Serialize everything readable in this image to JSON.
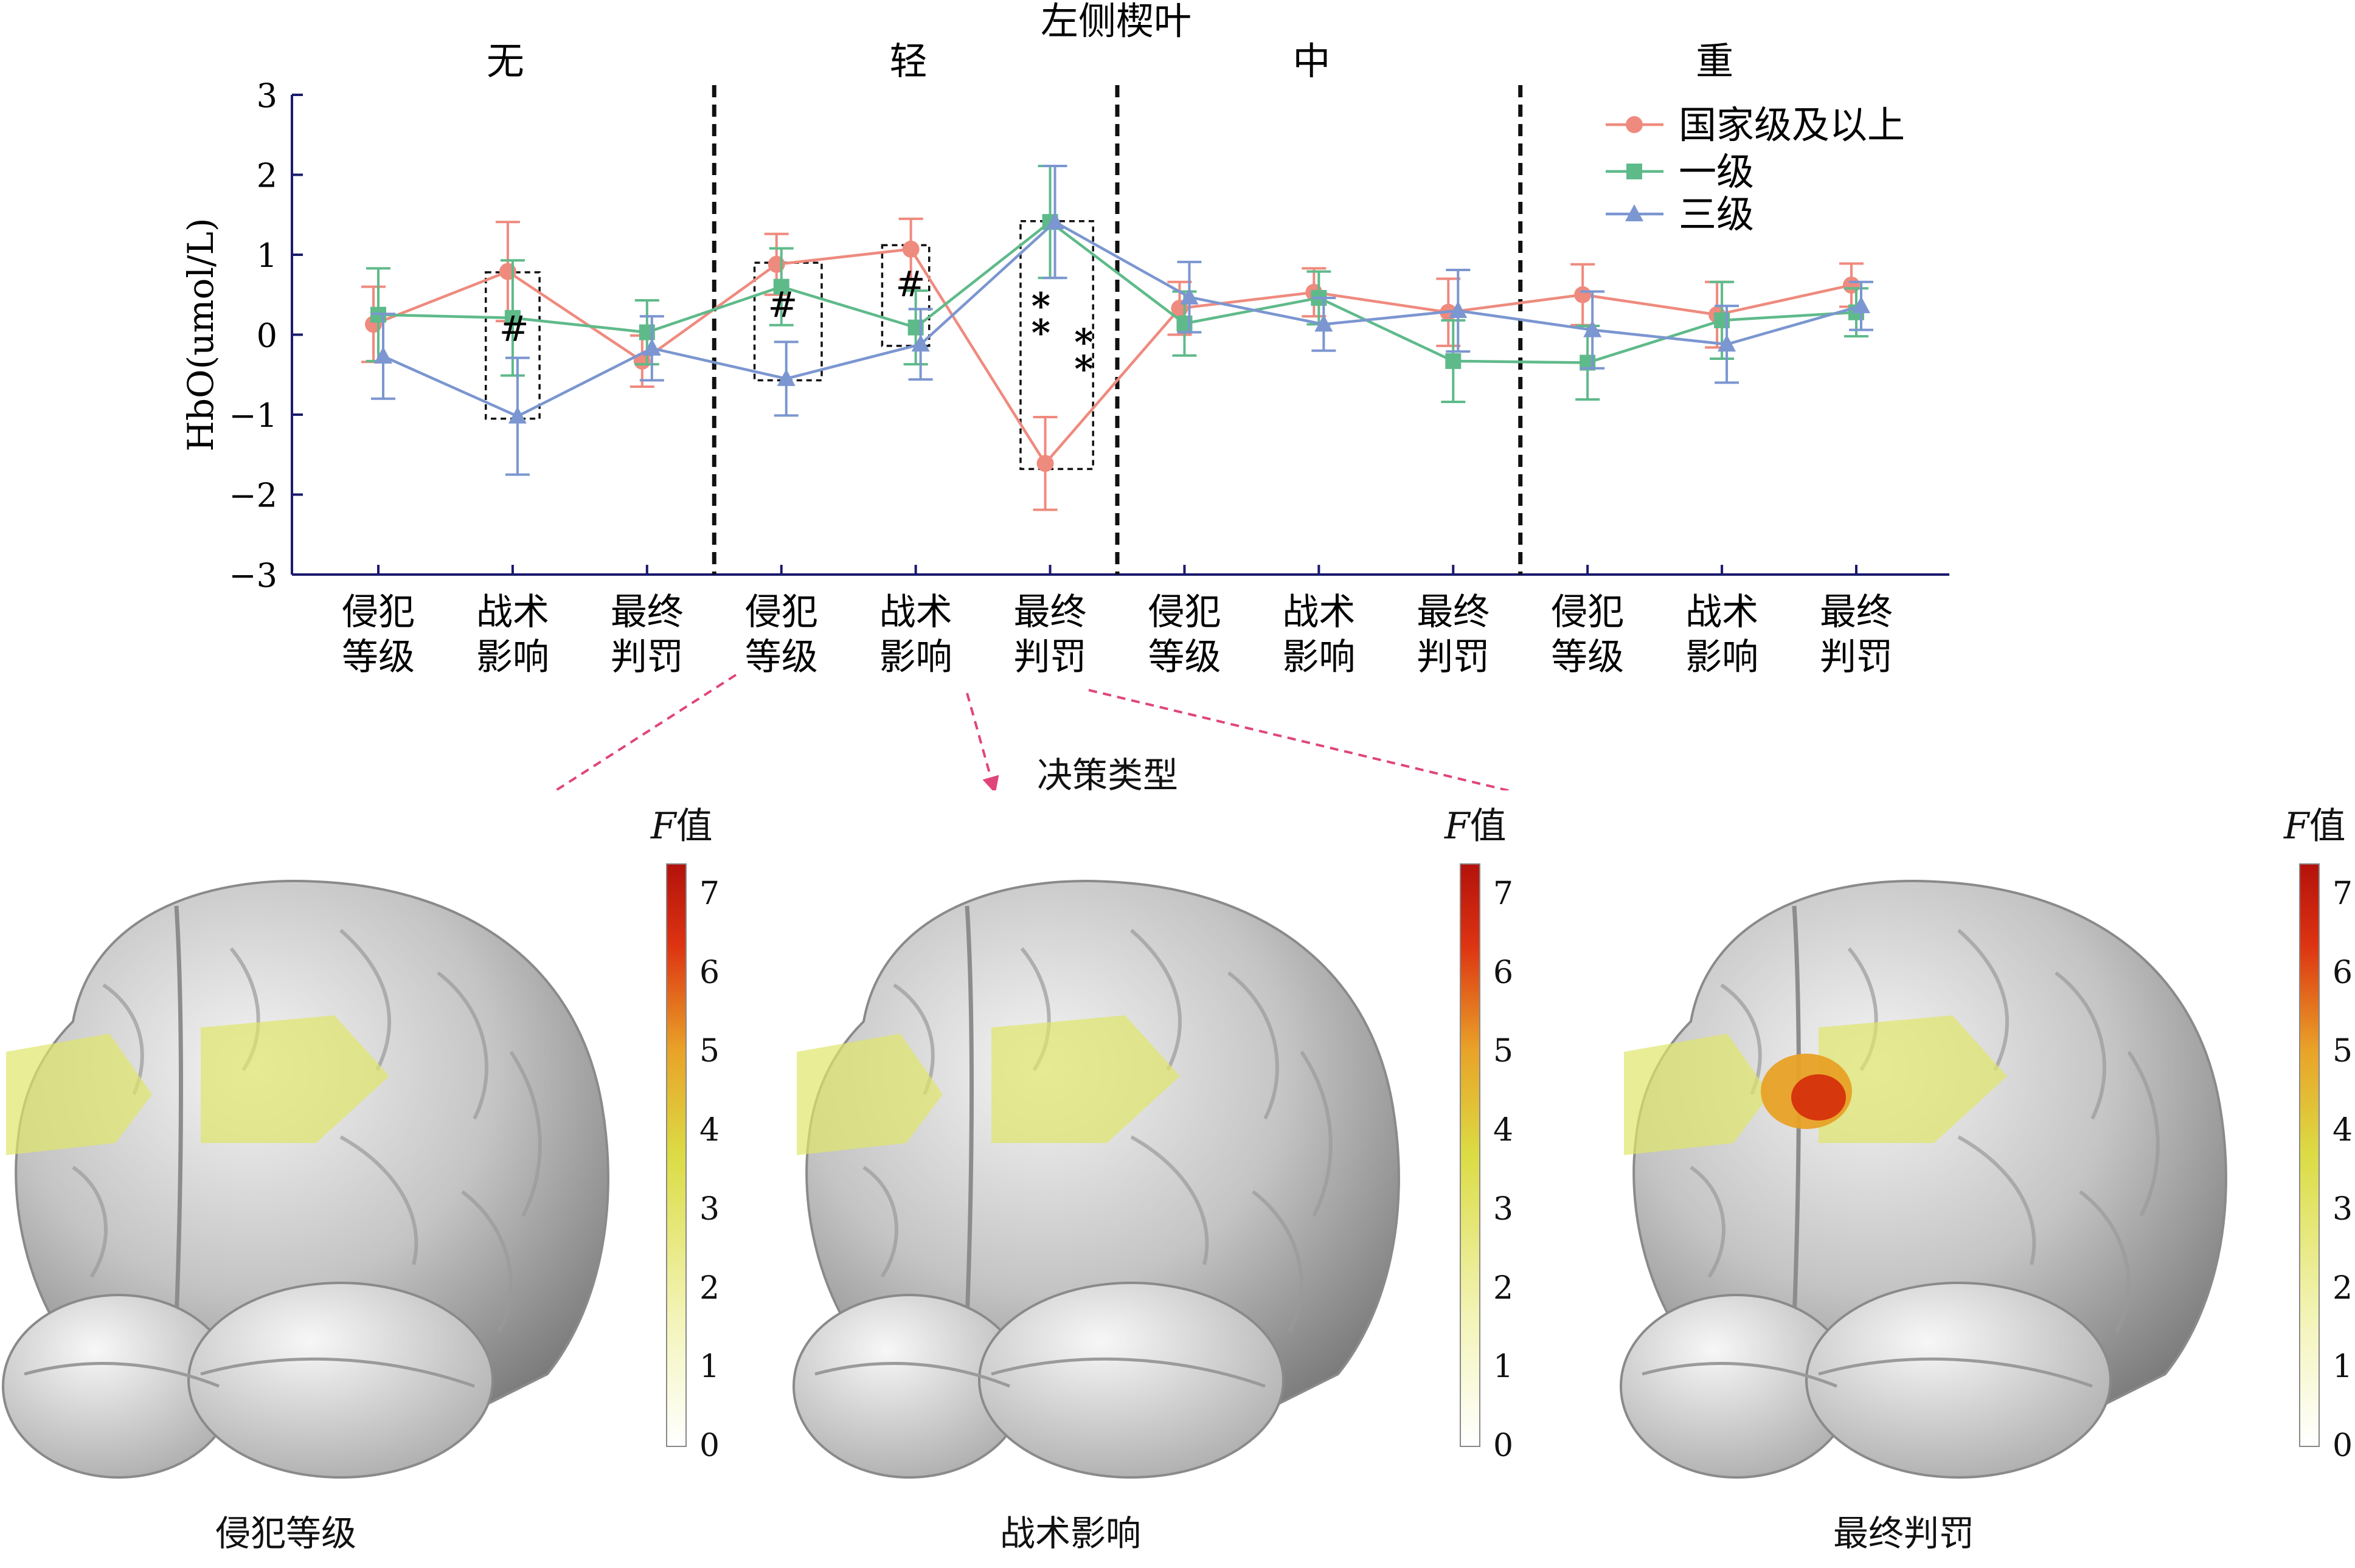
{
  "chart_data": {
    "type": "line",
    "title": "左侧楔叶",
    "ylabel": "HbO(umol/L)",
    "ylim": [
      -3,
      3
    ],
    "yticks": [
      3,
      2,
      1,
      0,
      -1,
      -2,
      -3
    ],
    "ytick_labels": [
      "3",
      "2",
      "1",
      "0",
      "−1",
      "−2",
      "−3"
    ],
    "groups": [
      "无",
      "轻",
      "中",
      "重"
    ],
    "categories": [
      [
        "侵犯",
        "等级"
      ],
      [
        "战术",
        "影响"
      ],
      [
        "最终",
        "判罚"
      ],
      [
        "侵犯",
        "等级"
      ],
      [
        "战术",
        "影响"
      ],
      [
        "最终",
        "判罚"
      ],
      [
        "侵犯",
        "等级"
      ],
      [
        "战术",
        "影响"
      ],
      [
        "最终",
        "判罚"
      ],
      [
        "侵犯",
        "等级"
      ],
      [
        "战术",
        "影响"
      ],
      [
        "最终",
        "判罚"
      ]
    ],
    "x_positions": [
      1,
      2,
      3,
      4,
      5,
      6,
      7,
      8,
      9,
      10,
      11,
      12
    ],
    "legend_position": "top-right",
    "series": [
      {
        "name": "国家级及以上",
        "color": "#ef8a7e",
        "marker": "circle",
        "values": [
          0.13,
          0.79,
          -0.33,
          0.88,
          1.07,
          -1.61,
          0.33,
          0.53,
          0.28,
          0.5,
          0.25,
          0.62
        ],
        "errors": [
          0.47,
          0.62,
          0.32,
          0.38,
          0.38,
          0.58,
          0.33,
          0.3,
          0.42,
          0.38,
          0.41,
          0.27
        ]
      },
      {
        "name": "一级",
        "color": "#5fba8a",
        "marker": "square",
        "values": [
          0.25,
          0.21,
          0.03,
          0.6,
          0.09,
          1.41,
          0.14,
          0.46,
          -0.33,
          -0.35,
          0.18,
          0.28
        ],
        "errors": [
          0.58,
          0.72,
          0.4,
          0.48,
          0.46,
          0.7,
          0.4,
          0.33,
          0.51,
          0.46,
          0.48,
          0.3
        ]
      },
      {
        "name": "三级",
        "color": "#7b96d0",
        "marker": "triangle",
        "values": [
          -0.27,
          -1.02,
          -0.17,
          -0.55,
          -0.12,
          1.41,
          0.47,
          0.13,
          0.3,
          0.06,
          -0.12,
          0.36
        ],
        "errors": [
          0.53,
          0.73,
          0.4,
          0.46,
          0.44,
          0.7,
          0.44,
          0.33,
          0.51,
          0.48,
          0.48,
          0.3
        ]
      }
    ],
    "annotations": [
      {
        "text": "#",
        "box_x": [
          1.8,
          2.2
        ],
        "box_y": [
          -1.05,
          0.78
        ],
        "label_at": [
          1.9,
          -0.08
        ]
      },
      {
        "text": "#",
        "box_x": [
          3.8,
          4.3
        ],
        "box_y": [
          -0.57,
          0.9
        ],
        "label_at": [
          3.9,
          0.22
        ]
      },
      {
        "text": "#",
        "box_x": [
          4.75,
          5.1
        ],
        "box_y": [
          -0.14,
          1.12
        ],
        "label_at": [
          4.85,
          0.48
        ]
      },
      {
        "text": "**",
        "box_x": [
          5.78,
          6.32
        ],
        "box_y": [
          -1.68,
          1.42
        ],
        "label_at": [
          5.86,
          0.2
        ]
      },
      {
        "text": "**",
        "box_x": null,
        "box_y": null,
        "label_at": [
          6.18,
          -0.25
        ]
      }
    ]
  },
  "subtitle": "决策类型",
  "brain_panels": [
    {
      "caption": "侵犯等级",
      "colorbar_title_var": "F",
      "colorbar_title_suffix": "值",
      "ticks": [
        "7",
        "6",
        "5",
        "4",
        "3",
        "2",
        "1",
        "0"
      ],
      "hotspot": false
    },
    {
      "caption": "战术影响",
      "colorbar_title_var": "F",
      "colorbar_title_suffix": "值",
      "ticks": [
        "7",
        "6",
        "5",
        "4",
        "3",
        "2",
        "1",
        "0"
      ],
      "hotspot": false
    },
    {
      "caption": "最终判罚",
      "colorbar_title_var": "F",
      "colorbar_title_suffix": "值",
      "ticks": [
        "7",
        "6",
        "5",
        "4",
        "3",
        "2",
        "1",
        "0"
      ],
      "hotspot": true
    }
  ],
  "colors": {
    "arrow": "#e0457a",
    "brain": "#bdbdbd",
    "overlay": "#dfe66a",
    "hotspot": "#d6300c"
  }
}
